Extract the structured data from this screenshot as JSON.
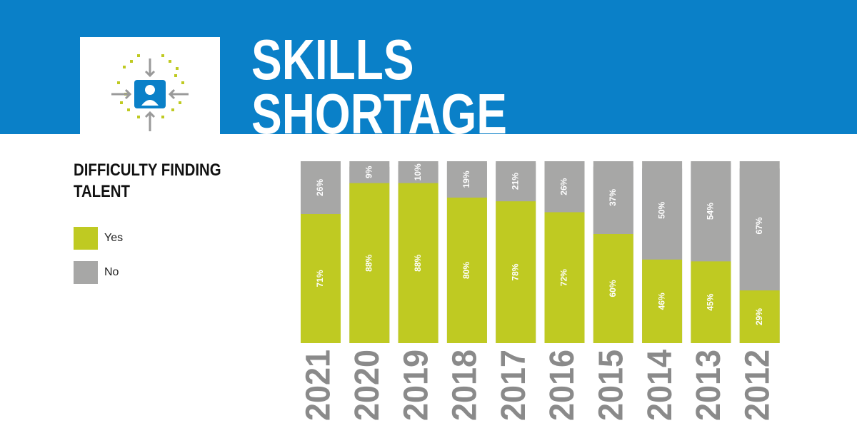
{
  "chart_data": {
    "type": "stacked-bar",
    "title": "SKILLS SHORTAGE",
    "subtitle": "DIFFICULTY FINDING TALENT",
    "categories": [
      "2021",
      "2020",
      "2019",
      "2018",
      "2017",
      "2016",
      "2015",
      "2014",
      "2013",
      "2012"
    ],
    "series": [
      {
        "name": "Yes",
        "color": "#bfca22",
        "values": [
          71,
          88,
          88,
          80,
          78,
          72,
          60,
          46,
          45,
          29
        ],
        "value_labels": [
          "71%",
          "88%",
          "88%",
          "80%",
          "78%",
          "72%",
          "60%",
          "46%",
          "45%",
          "29%"
        ]
      },
      {
        "name": "No",
        "color": "#a7a7a6",
        "values": [
          26,
          9,
          10,
          19,
          21,
          26,
          37,
          50,
          54,
          67
        ],
        "value_labels": [
          "26%",
          "9%",
          "10%",
          "19%",
          "21%",
          "26%",
          "37%",
          "50%",
          "54%",
          "67%"
        ]
      }
    ],
    "ylim": [
      0,
      100
    ]
  }
}
